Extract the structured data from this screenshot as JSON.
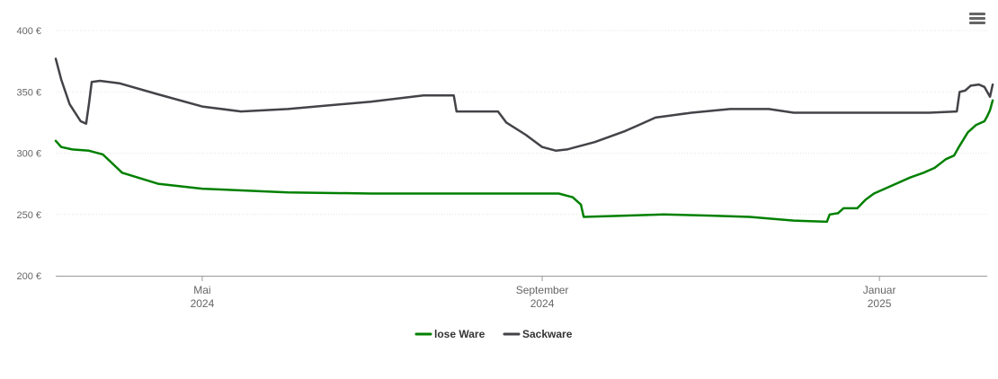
{
  "menu": {
    "icon": "hamburger-menu-icon"
  },
  "chart_data": {
    "type": "line",
    "y_tick_labels": [
      "200 €",
      "250 €",
      "300 €",
      "350 €",
      "400 €"
    ],
    "y_ticks": [
      200,
      250,
      300,
      350,
      400
    ],
    "ylim": [
      200,
      400
    ],
    "x_range": [
      "2024-03-09",
      "2025-02-09"
    ],
    "x_tick_labels": [
      {
        "date": "2024-05-01",
        "line1": "Mai",
        "line2": "2024"
      },
      {
        "date": "2024-09-01",
        "line1": "September",
        "line2": "2024"
      },
      {
        "date": "2025-01-01",
        "line1": "Januar",
        "line2": "2025"
      }
    ],
    "grid": true,
    "legend_position": "bottom-center",
    "series": [
      {
        "name": "lose Ware",
        "color": "#008000",
        "points": [
          [
            "2024-03-09",
            310
          ],
          [
            "2024-03-11",
            305
          ],
          [
            "2024-03-15",
            303
          ],
          [
            "2024-03-21",
            302
          ],
          [
            "2024-03-26",
            299
          ],
          [
            "2024-04-02",
            284
          ],
          [
            "2024-04-15",
            275
          ],
          [
            "2024-05-01",
            271
          ],
          [
            "2024-06-01",
            268
          ],
          [
            "2024-07-01",
            267
          ],
          [
            "2024-08-01",
            267
          ],
          [
            "2024-08-31",
            267
          ],
          [
            "2024-09-07",
            267
          ],
          [
            "2024-09-12",
            264
          ],
          [
            "2024-09-15",
            258
          ],
          [
            "2024-09-16",
            248
          ],
          [
            "2024-10-01",
            249
          ],
          [
            "2024-10-15",
            250
          ],
          [
            "2024-11-01",
            249
          ],
          [
            "2024-11-15",
            248
          ],
          [
            "2024-12-01",
            245
          ],
          [
            "2024-12-13",
            244
          ],
          [
            "2024-12-14",
            250
          ],
          [
            "2024-12-17",
            251
          ],
          [
            "2024-12-19",
            255
          ],
          [
            "2024-12-24",
            255
          ],
          [
            "2024-12-27",
            262
          ],
          [
            "2024-12-30",
            267
          ],
          [
            "2025-01-06",
            274
          ],
          [
            "2025-01-12",
            280
          ],
          [
            "2025-01-17",
            284
          ],
          [
            "2025-01-21",
            288
          ],
          [
            "2025-01-25",
            295
          ],
          [
            "2025-01-28",
            298
          ],
          [
            "2025-01-30",
            306
          ],
          [
            "2025-02-02",
            317
          ],
          [
            "2025-02-05",
            323
          ],
          [
            "2025-02-08",
            326
          ],
          [
            "2025-02-09",
            330
          ],
          [
            "2025-02-10",
            335
          ],
          [
            "2025-02-11",
            343
          ]
        ]
      },
      {
        "name": "Sackware",
        "color": "#434348",
        "points": [
          [
            "2024-03-09",
            377
          ],
          [
            "2024-03-11",
            360
          ],
          [
            "2024-03-14",
            340
          ],
          [
            "2024-03-18",
            326
          ],
          [
            "2024-03-20",
            324
          ],
          [
            "2024-03-21",
            340
          ],
          [
            "2024-03-22",
            358
          ],
          [
            "2024-03-25",
            359
          ],
          [
            "2024-04-01",
            357
          ],
          [
            "2024-04-15",
            348
          ],
          [
            "2024-05-01",
            338
          ],
          [
            "2024-05-15",
            334
          ],
          [
            "2024-06-01",
            336
          ],
          [
            "2024-07-01",
            342
          ],
          [
            "2024-07-20",
            347
          ],
          [
            "2024-07-31",
            347
          ],
          [
            "2024-08-01",
            334
          ],
          [
            "2024-08-16",
            334
          ],
          [
            "2024-08-19",
            325
          ],
          [
            "2024-08-26",
            315
          ],
          [
            "2024-09-01",
            305
          ],
          [
            "2024-09-06",
            302
          ],
          [
            "2024-09-10",
            303
          ],
          [
            "2024-09-20",
            309
          ],
          [
            "2024-10-01",
            318
          ],
          [
            "2024-10-06",
            323
          ],
          [
            "2024-10-12",
            329
          ],
          [
            "2024-10-25",
            333
          ],
          [
            "2024-11-08",
            336
          ],
          [
            "2024-11-22",
            336
          ],
          [
            "2024-12-01",
            333
          ],
          [
            "2024-12-15",
            333
          ],
          [
            "2025-01-01",
            333
          ],
          [
            "2025-01-19",
            333
          ],
          [
            "2025-01-29",
            334
          ],
          [
            "2025-01-30",
            350
          ],
          [
            "2025-02-01",
            351
          ],
          [
            "2025-02-03",
            355
          ],
          [
            "2025-02-06",
            356
          ],
          [
            "2025-02-08",
            354
          ],
          [
            "2025-02-09",
            350
          ],
          [
            "2025-02-10",
            346
          ],
          [
            "2025-02-11",
            356
          ]
        ]
      }
    ]
  }
}
